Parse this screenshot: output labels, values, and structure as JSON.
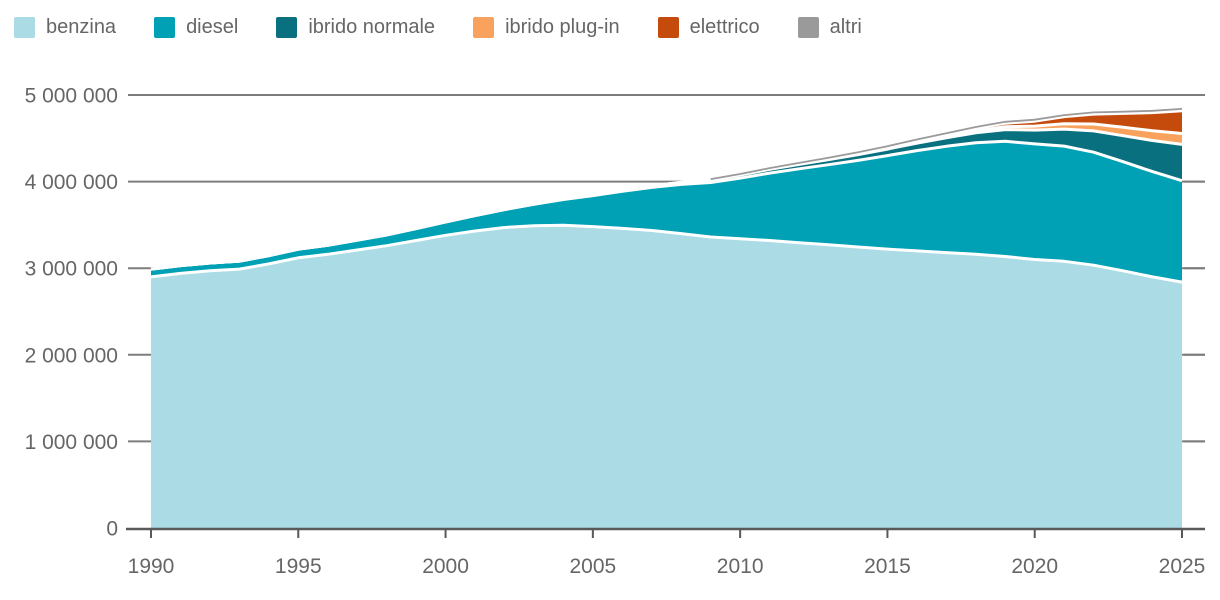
{
  "legend": {
    "items": [
      {
        "label": "benzina",
        "color": "#abdbe4"
      },
      {
        "label": "diesel",
        "color": "#00a1b5"
      },
      {
        "label": "ibrido normale",
        "color": "#09707f"
      },
      {
        "label": "ibrido plug-in",
        "color": "#f8a25d"
      },
      {
        "label": "elettrico",
        "color": "#c54b0c"
      },
      {
        "label": "altri",
        "color": "#9a9a9a"
      }
    ]
  },
  "chart_data": {
    "type": "area",
    "stacked": true,
    "grid": true,
    "legend_position": "top-left",
    "ylim": [
      0,
      5000000
    ],
    "xlim": [
      1990,
      2025
    ],
    "x": [
      1990,
      1991,
      1992,
      1993,
      1994,
      1995,
      1996,
      1997,
      1998,
      1999,
      2000,
      2001,
      2002,
      2003,
      2004,
      2005,
      2006,
      2007,
      2008,
      2009,
      2010,
      2011,
      2012,
      2013,
      2014,
      2015,
      2016,
      2017,
      2018,
      2019,
      2020,
      2021,
      2022,
      2023,
      2024,
      2025
    ],
    "series": [
      {
        "name": "benzina",
        "color": "#abdbe4",
        "values": [
          2900000,
          2940000,
          2970000,
          2990000,
          3050000,
          3120000,
          3160000,
          3210000,
          3260000,
          3320000,
          3380000,
          3430000,
          3470000,
          3490000,
          3495000,
          3480000,
          3460000,
          3435000,
          3400000,
          3360000,
          3340000,
          3320000,
          3295000,
          3270000,
          3245000,
          3220000,
          3200000,
          3180000,
          3160000,
          3135000,
          3100000,
          3080000,
          3035000,
          2970000,
          2900000,
          2840000
        ]
      },
      {
        "name": "diesel",
        "color": "#00a1b5",
        "values": [
          90000,
          90000,
          90000,
          92000,
          95000,
          100000,
          105000,
          113000,
          124000,
          138000,
          155000,
          178000,
          208000,
          248000,
          298000,
          358000,
          428000,
          498000,
          568000,
          630000,
          700000,
          778000,
          853000,
          925000,
          1000000,
          1080000,
          1158000,
          1228000,
          1288000,
          1330000,
          1335000,
          1330000,
          1305000,
          1260000,
          1215000,
          1170000
        ]
      },
      {
        "name": "ibrido normale",
        "color": "#09707f",
        "values": [
          0,
          0,
          0,
          0,
          0,
          0,
          0,
          0,
          0,
          0,
          0,
          0,
          0,
          2000,
          5000,
          8000,
          12000,
          17000,
          23000,
          30000,
          37000,
          44000,
          51000,
          58000,
          66000,
          75000,
          86000,
          98000,
          115000,
          135000,
          160000,
          196000,
          245000,
          300000,
          360000,
          420000
        ]
      },
      {
        "name": "ibrido plug-in",
        "color": "#f8a25d",
        "values": [
          0,
          0,
          0,
          0,
          0,
          0,
          0,
          0,
          0,
          0,
          0,
          0,
          0,
          0,
          0,
          0,
          0,
          0,
          0,
          0,
          0,
          1000,
          2000,
          4000,
          6000,
          9000,
          13000,
          18000,
          25000,
          34000,
          46000,
          62000,
          80000,
          97000,
          112000,
          125000
        ]
      },
      {
        "name": "elettrico",
        "color": "#c54b0c",
        "values": [
          0,
          0,
          0,
          0,
          0,
          0,
          0,
          0,
          0,
          0,
          0,
          0,
          0,
          0,
          0,
          0,
          0,
          0,
          0,
          0,
          1000,
          2000,
          3000,
          5000,
          7000,
          10000,
          14000,
          19000,
          27000,
          40000,
          57000,
          82000,
          115000,
          160000,
          210000,
          262000
        ]
      },
      {
        "name": "altri",
        "color": "#9a9a9a",
        "values": [
          3000,
          3000,
          3000,
          3000,
          3000,
          3000,
          3000,
          3000,
          3000,
          3000,
          4000,
          4000,
          4000,
          4000,
          4000,
          5000,
          6000,
          7000,
          8000,
          9000,
          10000,
          11000,
          12000,
          13000,
          14000,
          15000,
          15000,
          16000,
          16000,
          17000,
          17000,
          18000,
          19000,
          20000,
          21000,
          22000
        ]
      }
    ],
    "y_ticks": [
      0,
      1000000,
      2000000,
      3000000,
      4000000,
      5000000
    ],
    "y_tick_labels": [
      "0",
      "1 000 000",
      "2 000 000",
      "3 000 000",
      "4 000 000",
      "5 000 000"
    ],
    "x_tick_labels": [
      "1990",
      "1995",
      "2000",
      "2005",
      "2010",
      "2015",
      "2020",
      "2025"
    ]
  },
  "style": {
    "grid_color": "#7d7d7d",
    "axis_color": "#595959",
    "separator_color": "#ffffff",
    "label_color": "#666666"
  }
}
